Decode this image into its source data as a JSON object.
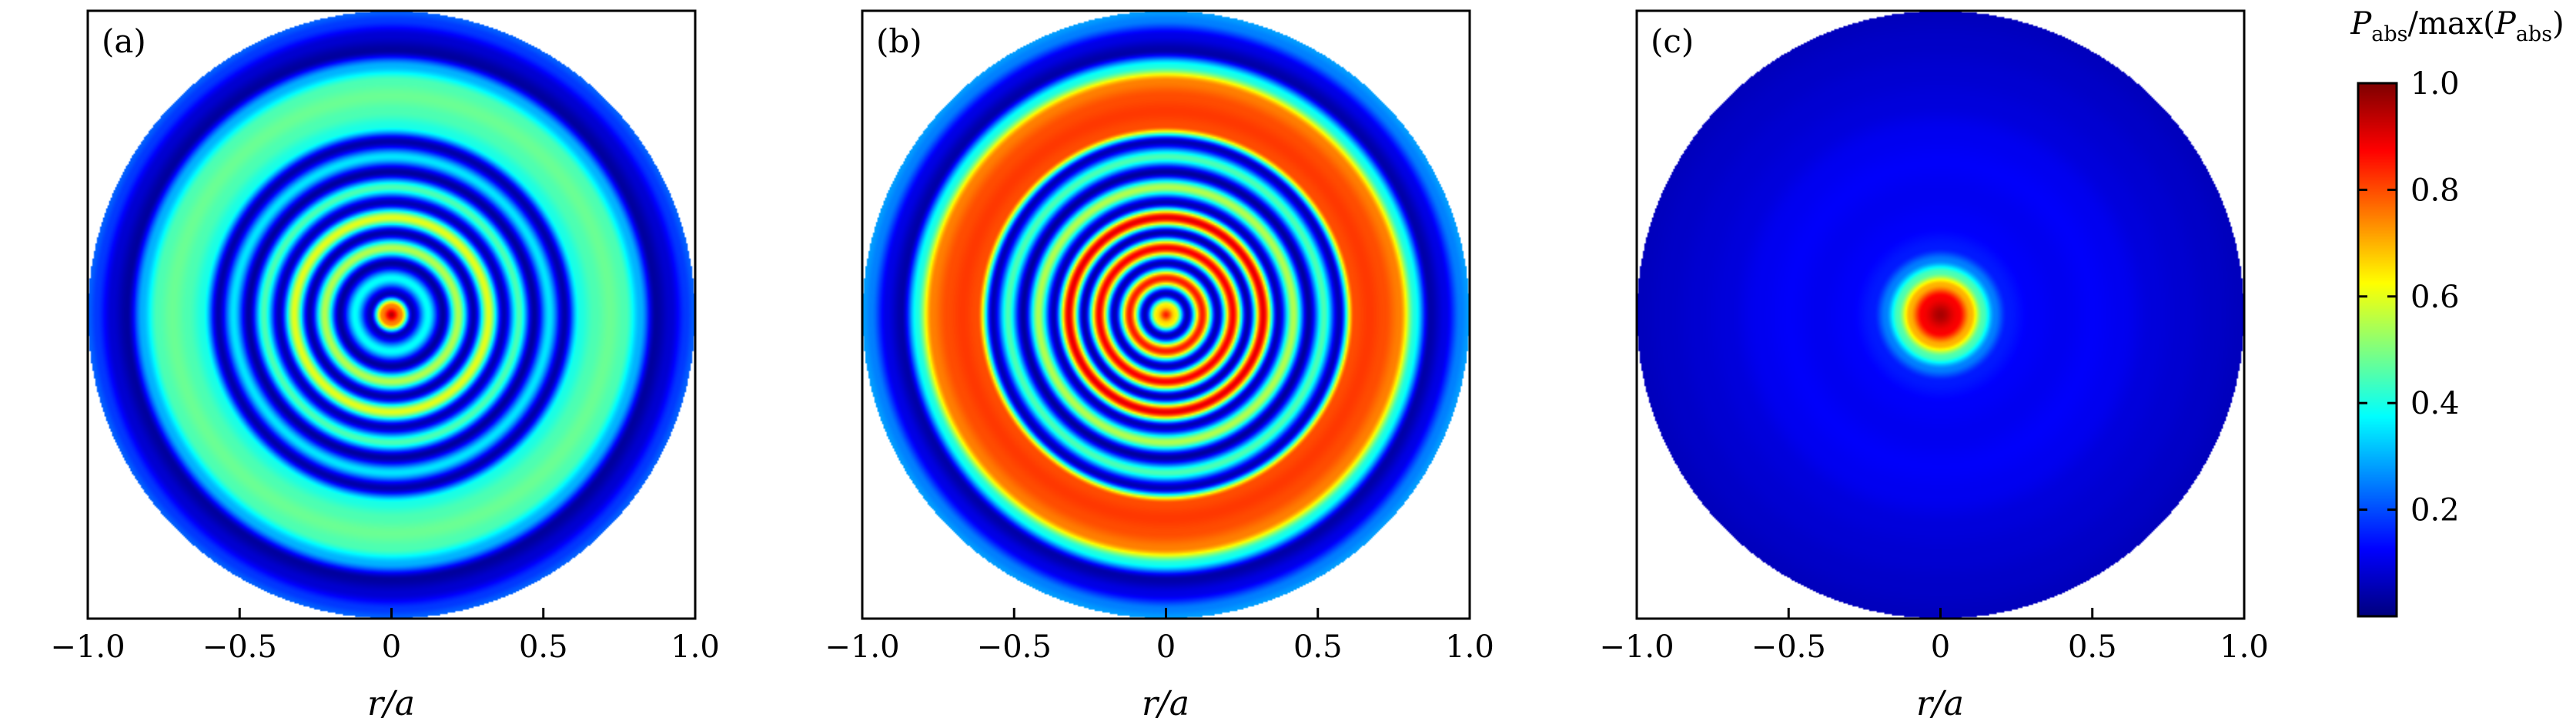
{
  "chart_data": [
    {
      "type": "heatmap",
      "panel_label": "(a)",
      "xlabel": "r/a",
      "xlim": [
        -1.0,
        1.0
      ],
      "xticks": [
        -1.0,
        -0.5,
        0,
        0.5,
        1.0
      ],
      "xtick_labels": [
        "−1.0",
        "−0.5",
        "0",
        "0.5",
        "1.0"
      ],
      "grid": false,
      "radial_profile": {
        "r": [
          0.0,
          0.03,
          0.07,
          0.12,
          0.17,
          0.22,
          0.27,
          0.32,
          0.37,
          0.42,
          0.47,
          0.52,
          0.57,
          0.62,
          0.67,
          0.72,
          0.77,
          0.82,
          0.87,
          0.92,
          0.97,
          1.0
        ],
        "value": [
          0.95,
          0.75,
          0.05,
          0.38,
          0.03,
          0.55,
          0.04,
          0.6,
          0.05,
          0.45,
          0.03,
          0.35,
          0.04,
          0.4,
          0.45,
          0.48,
          0.45,
          0.3,
          0.03,
          0.08,
          0.18,
          0.22
        ]
      }
    },
    {
      "type": "heatmap",
      "panel_label": "(b)",
      "xlabel": "r/a",
      "xlim": [
        -1.0,
        1.0
      ],
      "xticks": [
        -1.0,
        -0.5,
        0,
        0.5,
        1.0
      ],
      "xtick_labels": [
        "−1.0",
        "−0.5",
        "0",
        "0.5",
        "1.0"
      ],
      "grid": false,
      "radial_profile": {
        "r": [
          0.0,
          0.03,
          0.07,
          0.12,
          0.17,
          0.22,
          0.27,
          0.32,
          0.37,
          0.42,
          0.47,
          0.52,
          0.57,
          0.62,
          0.67,
          0.72,
          0.77,
          0.82,
          0.87,
          0.92,
          0.97,
          1.0
        ],
        "value": [
          0.85,
          0.65,
          0.05,
          0.85,
          0.05,
          0.88,
          0.04,
          0.9,
          0.05,
          0.55,
          0.03,
          0.45,
          0.05,
          0.8,
          0.82,
          0.8,
          0.75,
          0.4,
          0.04,
          0.1,
          0.25,
          0.28
        ]
      }
    },
    {
      "type": "heatmap",
      "panel_label": "(c)",
      "xlabel": "r/a",
      "xlim": [
        -1.0,
        1.0
      ],
      "xticks": [
        -1.0,
        -0.5,
        0,
        0.5,
        1.0
      ],
      "xtick_labels": [
        "−1.0",
        "−0.5",
        "0",
        "0.5",
        "1.0"
      ],
      "grid": false,
      "radial_profile": {
        "r": [
          0.0,
          0.06,
          0.1,
          0.14,
          0.18,
          0.22,
          0.3,
          0.4,
          0.5,
          0.6,
          0.7,
          0.8,
          0.9,
          1.0
        ],
        "value": [
          0.96,
          0.88,
          0.7,
          0.45,
          0.25,
          0.15,
          0.12,
          0.11,
          0.12,
          0.11,
          0.09,
          0.08,
          0.07,
          0.06
        ]
      }
    }
  ],
  "colorbar": {
    "title_main": "P",
    "title_sub": "abs",
    "title_mid": "/max(",
    "title_end": ")",
    "range": [
      0.0,
      1.0
    ],
    "ticks": [
      0.2,
      0.4,
      0.6,
      0.8,
      1.0
    ],
    "tick_labels": [
      "0.2",
      "0.4",
      "0.6",
      "0.8",
      "1.0"
    ],
    "colormap": "jet"
  }
}
